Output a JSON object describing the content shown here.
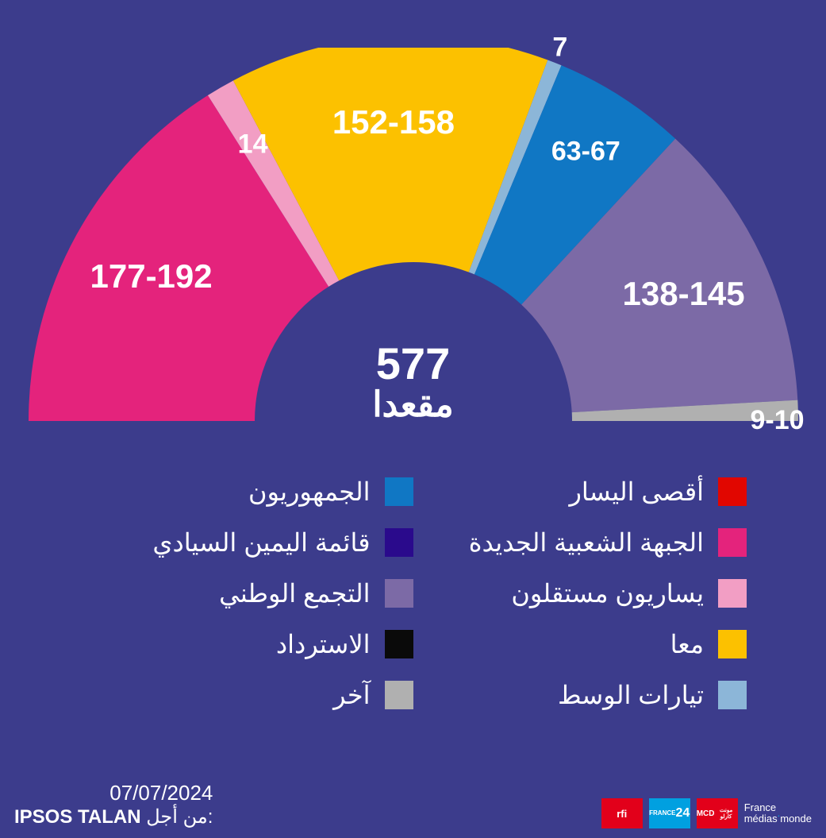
{
  "chart": {
    "type": "semicircle-parliament",
    "total_seats": 577,
    "total_seats_label": "577",
    "seats_word": "مقعدا",
    "background_color": "#3c3c8c",
    "text_color": "#ffffff",
    "inner_radius": 200,
    "outer_radius": 485,
    "label_fontsize_large": 42,
    "label_fontsize_medium": 34,
    "center_number_fontsize": 56,
    "center_word_fontsize": 44,
    "slices": [
      {
        "key": "far_left",
        "seats_mid": 0,
        "label": "",
        "color": "#e10600"
      },
      {
        "key": "nfp",
        "seats_mid": 185,
        "label": "177-192",
        "color": "#e4237c"
      },
      {
        "key": "ind_left",
        "seats_mid": 14,
        "label": "14",
        "color": "#f29ec4"
      },
      {
        "key": "ensemble",
        "seats_mid": 155,
        "label": "152-158",
        "color": "#fcc100"
      },
      {
        "key": "centrists",
        "seats_mid": 7,
        "label": "7",
        "color": "#8cb6d8"
      },
      {
        "key": "lr",
        "seats_mid": 65,
        "label": "63-67",
        "color": "#1077c4"
      },
      {
        "key": "sovereign_r",
        "seats_mid": 0,
        "label": "",
        "color": "#2a0a8c"
      },
      {
        "key": "rn",
        "seats_mid": 141,
        "label": "138-145",
        "color": "#7c6aa6"
      },
      {
        "key": "reconquete",
        "seats_mid": 0,
        "label": "",
        "color": "#0a0a0a"
      },
      {
        "key": "other",
        "seats_mid": 10,
        "label": "9-10",
        "color": "#b0b0b0"
      }
    ]
  },
  "legend": {
    "fontsize": 32,
    "swatch_size": 36,
    "columns": [
      [
        {
          "label": "أقصى اليسار",
          "color": "#e10600"
        },
        {
          "label": "الجبهة الشعبية الجديدة",
          "color": "#e4237c"
        },
        {
          "label": "يساريون مستقلون",
          "color": "#f29ec4"
        },
        {
          "label": "معا",
          "color": "#fcc100"
        },
        {
          "label": "تيارات الوسط",
          "color": "#8cb6d8"
        }
      ],
      [
        {
          "label": "الجمهوريون",
          "color": "#1077c4"
        },
        {
          "label": "قائمة اليمين السيادي",
          "color": "#2a0a8c"
        },
        {
          "label": "التجمع الوطني",
          "color": "#7c6aa6"
        },
        {
          "label": "الاسترداد",
          "color": "#0a0a0a"
        },
        {
          "label": "آخر",
          "color": "#b0b0b0"
        }
      ]
    ]
  },
  "footer": {
    "date": "07/07/2024",
    "source_prefix": "من أجل:",
    "source_name": "IPSOS TALAN",
    "logos": [
      {
        "name": "rfi",
        "text": "rfi",
        "bg": "#e2001a",
        "fg": "#ffffff"
      },
      {
        "name": "f24",
        "text": "FRANCE 24",
        "bg": "#00a0e0",
        "fg": "#ffffff"
      },
      {
        "name": "mcd",
        "text": "MCD",
        "bg": "#e2001a",
        "fg": "#ffffff"
      },
      {
        "name": "fmm",
        "text": "France médias monde",
        "bg": "transparent",
        "fg": "#ffffff"
      }
    ]
  }
}
